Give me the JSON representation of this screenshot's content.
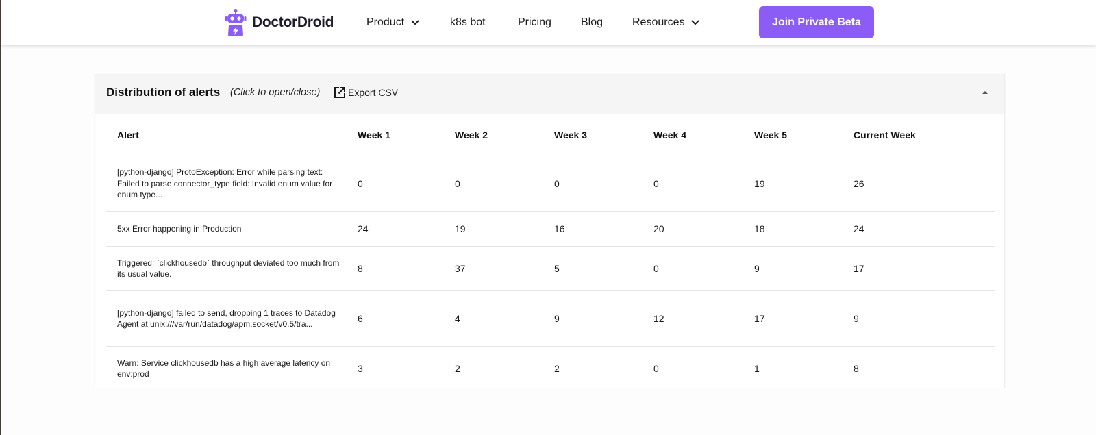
{
  "header": {
    "brand": "DoctorDroid",
    "nav": [
      {
        "label": "Product",
        "has_dropdown": true
      },
      {
        "label": "k8s bot",
        "has_dropdown": false
      },
      {
        "label": "Pricing",
        "has_dropdown": false
      },
      {
        "label": "Blog",
        "has_dropdown": false
      },
      {
        "label": "Resources",
        "has_dropdown": true
      }
    ],
    "cta_label": "Join Private Beta",
    "accent_color": "#8b5cf6"
  },
  "panel": {
    "title": "Distribution of alerts",
    "hint": "(Click to open/close)",
    "export_label": "Export CSV",
    "columns": [
      "Alert",
      "Week 1",
      "Week 2",
      "Week 3",
      "Week 4",
      "Week 5",
      "Current Week"
    ],
    "rows": [
      {
        "alert": "[python-django] ProtoException: Error while parsing text: Failed to parse connector_type field: Invalid enum value for enum type...",
        "values": [
          "0",
          "0",
          "0",
          "0",
          "19",
          "26"
        ]
      },
      {
        "alert": "5xx Error happening in Production",
        "values": [
          "24",
          "19",
          "16",
          "20",
          "18",
          "24"
        ]
      },
      {
        "alert": "Triggered: `clickhousedb` throughput deviated too much from its usual value.",
        "values": [
          "8",
          "37",
          "5",
          "0",
          "9",
          "17"
        ]
      },
      {
        "alert": "[python-django] failed to send, dropping 1 traces to Datadog Agent at unix:///var/run/datadog/apm.socket/v0.5/tra...",
        "values": [
          "6",
          "4",
          "9",
          "12",
          "17",
          "9"
        ]
      },
      {
        "alert": "Warn: Service clickhousedb has a high average latency on env:prod",
        "values": [
          "3",
          "2",
          "2",
          "0",
          "1",
          "8"
        ]
      }
    ]
  }
}
